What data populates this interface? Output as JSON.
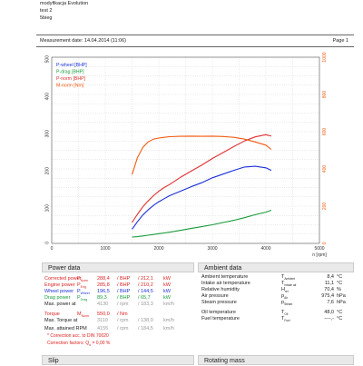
{
  "header": {
    "line1": "modyfikacja Evolution",
    "line2": "test 2",
    "line3": "5bieg",
    "measurement_date": "Measurement date: 14.04.2014 (11:06)",
    "page": "Page 1"
  },
  "chart_data": {
    "type": "line",
    "x_unit": "n [rpm]",
    "x": [
      1500,
      1600,
      1700,
      1800,
      1900,
      2000,
      2100,
      2200,
      2400,
      2600,
      2800,
      3000,
      3200,
      3400,
      3600,
      3800,
      4000,
      4100
    ],
    "xlim": [
      0,
      5000
    ],
    "x_ticks": [
      "0",
      "1000",
      "2000",
      "3000",
      "4000",
      "5000"
    ],
    "y_left_lim": [
      0,
      500
    ],
    "y_left_ticks": [
      "0",
      "100",
      "200",
      "300",
      "400",
      "500"
    ],
    "y_right_lim": [
      0,
      1000
    ],
    "y_right_ticks": [
      "0",
      "200",
      "400",
      "600",
      "800",
      "1000"
    ],
    "legend_position": "top-left",
    "series": [
      {
        "name": "P-wheel [BHP]",
        "color": "#1a2fd8",
        "axis": "left",
        "values": [
          38,
          58,
          76,
          90,
          102,
          112,
          120,
          128,
          140,
          152,
          163,
          176,
          186,
          196,
          205,
          207,
          203,
          196
        ]
      },
      {
        "name": "P-drag [BHP]",
        "color": "#179a3a",
        "axis": "left",
        "values": [
          17,
          18,
          20,
          22,
          24,
          26,
          28,
          30,
          35,
          40,
          45,
          50,
          56,
          62,
          69,
          77,
          84,
          89
        ]
      },
      {
        "name": "P-norm [BHP]",
        "color": "#e03030",
        "axis": "left",
        "values": [
          56,
          78,
          98,
          114,
          128,
          140,
          150,
          158,
          177,
          194,
          210,
          228,
          244,
          260,
          275,
          286,
          292,
          288
        ]
      },
      {
        "name": "M-norm [Nm]",
        "color": "#f05a10",
        "axis": "right",
        "values": [
          370,
          460,
          515,
          545,
          560,
          566,
          570,
          573,
          575,
          576,
          575,
          576,
          574,
          570,
          560,
          545,
          528,
          505
        ]
      }
    ]
  },
  "power": {
    "title": "Power data",
    "rows": [
      {
        "label": "Corrected power",
        "sym": "P",
        "sub": "Norm",
        "v1": "288,4",
        "u1": "BHP",
        "v2": "212,1",
        "u2": "kW",
        "color": "#d22"
      },
      {
        "label": "Engine power",
        "sym": "P",
        "sub": "Eng",
        "v1": "285,8",
        "u1": "BHP",
        "v2": "210,2",
        "u2": "kW",
        "color": "#d22"
      },
      {
        "label": "Wheel power",
        "sym": "P",
        "sub": "Wheel",
        "v1": "196,5",
        "u1": "BHP",
        "v2": "144,5",
        "u2": "kW",
        "color": "#1a2fd8"
      },
      {
        "label": "Drag power",
        "sym": "P",
        "sub": "Drag",
        "v1": "89,3",
        "u1": "BHP",
        "v2": "65,7",
        "u2": "kW",
        "color": "#179a3a"
      },
      {
        "label": "Max. power at",
        "sym": "",
        "sub": "",
        "v1": "4130",
        "u1": "rpm",
        "v2": "183,3",
        "u2": "km/h",
        "color": "#222"
      },
      {
        "label": "Torque",
        "sym": "M",
        "sub": "Norm",
        "v1": "550,0",
        "u1": "Nm",
        "v2": "",
        "u2": "",
        "color": "#d22"
      },
      {
        "label": "Max. Torque at",
        "sym": "",
        "sub": "",
        "v1": "3110",
        "u1": "rpm",
        "v2": "138,0",
        "u2": "km/h",
        "color": "#222"
      },
      {
        "label": "Max. attained RPM",
        "sym": "",
        "sub": "",
        "v1": "4155",
        "u1": "rpm",
        "v2": "184,5",
        "u2": "km/h",
        "color": "#222"
      }
    ],
    "footnote1": "* Correction acc. to DIN 70020",
    "footnote2": "Correction factors: Q",
    "footnote2_value": "= 0,00 %"
  },
  "ambient": {
    "title": "Ambient data",
    "rows": [
      {
        "label": "Ambient temperature",
        "sym": "T",
        "sub": "Ambient",
        "v": "8,4",
        "u": "°C"
      },
      {
        "label": "Intake air temperature",
        "sym": "T",
        "sub": "Intake air",
        "v": "11,1",
        "u": "°C"
      },
      {
        "label": "Relative humidity",
        "sym": "H",
        "sub": "rel",
        "v": "70,4",
        "u": "%"
      },
      {
        "label": "Air pressure",
        "sym": "p",
        "sub": "Air",
        "v": "975,4",
        "u": "hPa"
      },
      {
        "label": "Steam pressure",
        "sym": "p",
        "sub": "Steam",
        "v": "7,6",
        "u": "hPa"
      },
      {
        "label": "Oil temperature",
        "sym": "T",
        "sub": "Oil",
        "v": "48,0",
        "u": "°C"
      },
      {
        "label": "Fuel temperature",
        "sym": "T",
        "sub": "Fuel",
        "v": "----,-",
        "u": "°C"
      }
    ]
  },
  "slip": {
    "title": "Slip"
  },
  "rotating": {
    "title": "Rotating mass"
  }
}
